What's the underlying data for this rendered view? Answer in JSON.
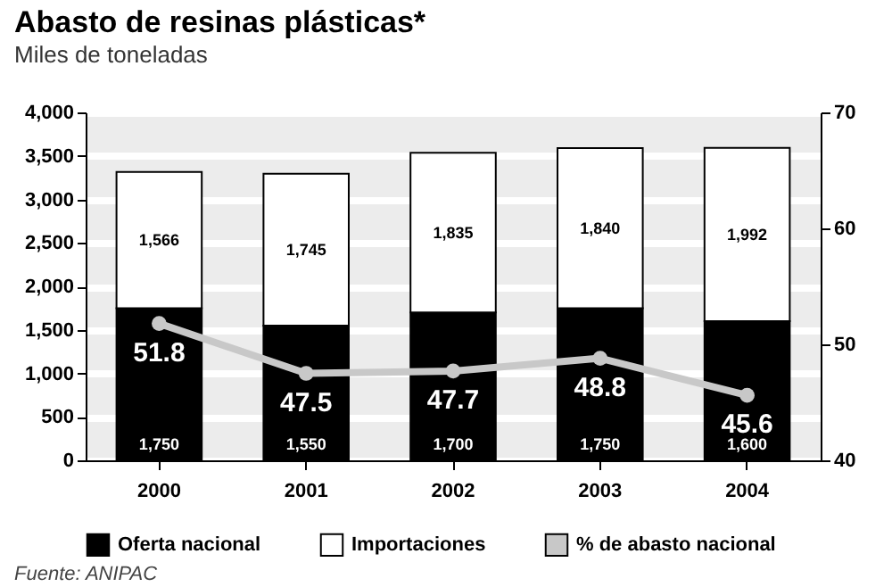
{
  "chart_data": {
    "type": "bar",
    "title": "Abasto de resinas plásticas*",
    "subtitle": "Miles de toneladas",
    "categories": [
      "2000",
      "2001",
      "2002",
      "2003",
      "2004"
    ],
    "stacked": true,
    "series": [
      {
        "name": "Oferta nacional",
        "color": "#000000",
        "values": [
          1750,
          1550,
          1700,
          1750,
          1600
        ],
        "value_labels": [
          "1,750",
          "1,550",
          "1,700",
          "1,750",
          "1,600"
        ]
      },
      {
        "name": "Importaciones",
        "color": "#ffffff",
        "values": [
          1566,
          1745,
          1835,
          1840,
          1992
        ],
        "value_labels": [
          "1,566",
          "1,745",
          "1,835",
          "1,840",
          "1,992"
        ]
      },
      {
        "name": "% de abasto nacional",
        "type": "line",
        "axis": "y2",
        "color": "#c8c8c8",
        "values": [
          51.8,
          47.5,
          47.7,
          48.8,
          45.6
        ],
        "value_labels": [
          "51.8",
          "47.5",
          "47.7",
          "48.8",
          "45.6"
        ]
      }
    ],
    "ylim": [
      0,
      4000
    ],
    "yticks": [
      0,
      {
        "value": 500,
        "label": "500"
      },
      {
        "value": 1000,
        "label": "1,000"
      },
      {
        "value": 1500,
        "label": "1,500"
      },
      {
        "value": 2000,
        "label": "2,000"
      },
      {
        "value": 2500,
        "label": "2,500"
      },
      {
        "value": 3000,
        "label": "3,000"
      },
      {
        "value": 3500,
        "label": "3,500"
      },
      {
        "value": 4000,
        "label": "4,000"
      }
    ],
    "y2lim": [
      40,
      70
    ],
    "y2ticks": [
      40,
      50,
      60,
      70
    ],
    "grid": "y",
    "legend": "bottom",
    "marker": "circle",
    "annotations": [
      "Fuente: ANIPAC"
    ]
  }
}
